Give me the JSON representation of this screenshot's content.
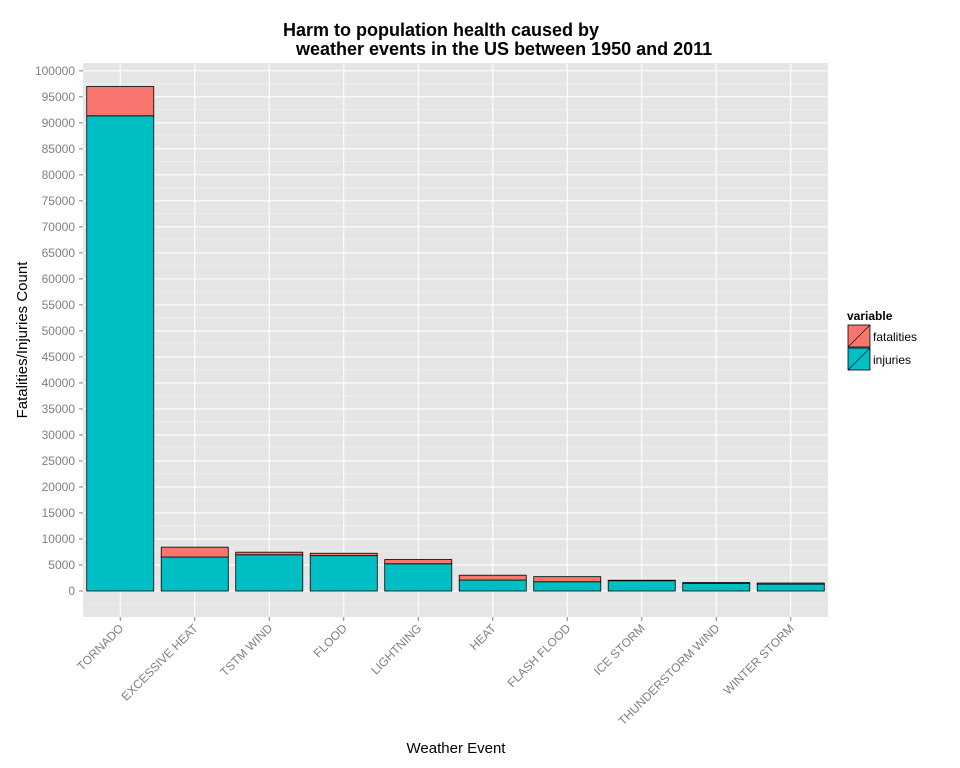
{
  "chart_data": {
    "type": "bar",
    "stacked": true,
    "title_line1": "Harm to population health caused by",
    "title_line2": "weather events in the US between 1950 and 2011",
    "xlabel": "Weather Event",
    "ylabel": "Fatalities/Injuries Count",
    "ylim": [
      -5000,
      101500
    ],
    "yticks": [
      0,
      5000,
      10000,
      15000,
      20000,
      25000,
      30000,
      35000,
      40000,
      45000,
      50000,
      55000,
      60000,
      65000,
      70000,
      75000,
      80000,
      85000,
      90000,
      95000,
      100000
    ],
    "categories": [
      "TORNADO",
      "EXCESSIVE HEAT",
      "TSTM WIND",
      "FLOOD",
      "LIGHTNING",
      "HEAT",
      "FLASH FLOOD",
      "ICE STORM",
      "THUNDERSTORM WIND",
      "WINTER STORM"
    ],
    "series": [
      {
        "name": "injuries",
        "color": "#00bfc4",
        "values": [
          91346,
          6525,
          6957,
          6789,
          5230,
          2100,
          1777,
          1975,
          1488,
          1321
        ]
      },
      {
        "name": "fatalities",
        "color": "#f8766d",
        "values": [
          5633,
          1903,
          504,
          470,
          816,
          937,
          978,
          89,
          133,
          206
        ]
      }
    ],
    "legend": {
      "title": "variable",
      "position": "right",
      "entries": [
        "fatalities",
        "injuries"
      ]
    },
    "grid": true,
    "colors": {
      "panel": "#e5e5e5",
      "grid_major": "#ffffff",
      "grid_minor": "#f2f2f2",
      "bar_outline": "#000000"
    }
  }
}
